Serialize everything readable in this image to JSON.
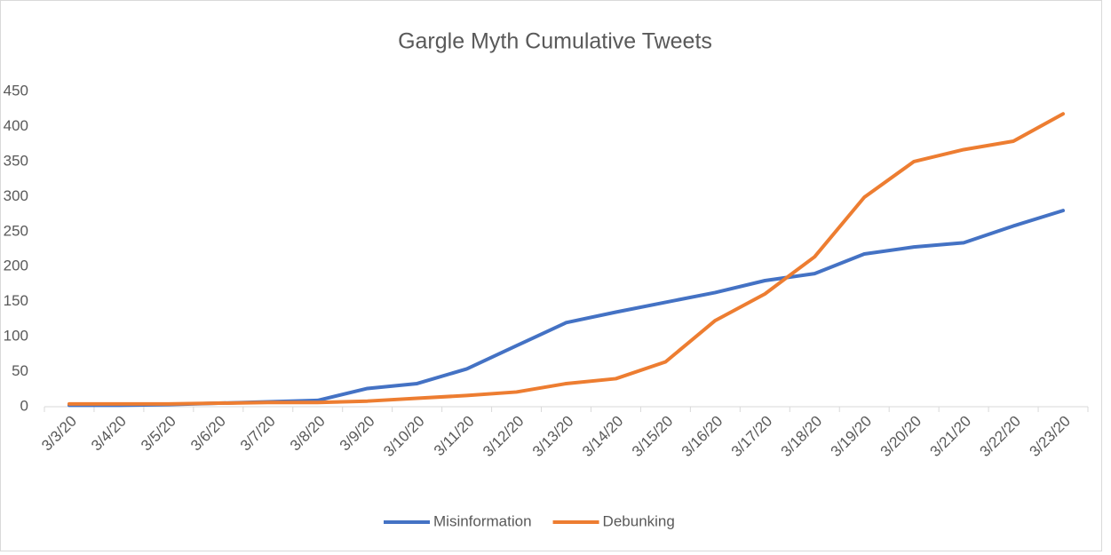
{
  "chart_data": {
    "type": "line",
    "title": "Gargle Myth Cumulative Tweets",
    "categories": [
      "3/3/20",
      "3/4/20",
      "3/5/20",
      "3/6/20",
      "3/7/20",
      "3/8/20",
      "3/9/20",
      "3/10/20",
      "3/11/20",
      "3/12/20",
      "3/13/20",
      "3/14/20",
      "3/15/20",
      "3/16/20",
      "3/17/20",
      "3/18/20",
      "3/19/20",
      "3/20/20",
      "3/21/20",
      "3/22/20",
      "3/23/20"
    ],
    "series": [
      {
        "name": "Misinformation",
        "color": "#4472c4",
        "values": [
          2,
          2,
          3,
          5,
          7,
          9,
          26,
          33,
          54,
          87,
          120,
          135,
          149,
          163,
          180,
          190,
          218,
          228,
          234,
          258,
          280
        ]
      },
      {
        "name": "Debunking",
        "color": "#ed7d31",
        "values": [
          4,
          4,
          4,
          5,
          6,
          6,
          8,
          12,
          16,
          21,
          33,
          40,
          64,
          123,
          161,
          214,
          299,
          350,
          367,
          379,
          418
        ]
      }
    ],
    "ylim": [
      0,
      450
    ],
    "yticks": [
      0,
      50,
      100,
      150,
      200,
      250,
      300,
      350,
      400,
      450
    ],
    "grid": false,
    "legend": "bottom"
  }
}
